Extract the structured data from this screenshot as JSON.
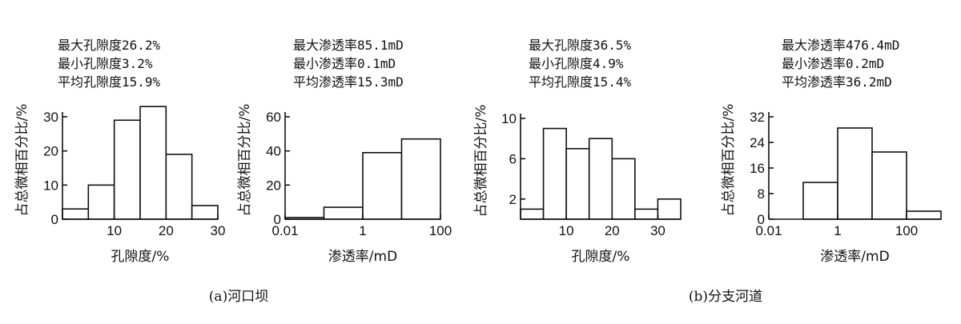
{
  "captions": [
    "(a)河口坝",
    "(b)分支河道"
  ],
  "chart_data": [
    {
      "type": "bar",
      "histogram": true,
      "stats": [
        "最大孔隙度26.2%",
        "最小孔隙度3.2%",
        "平均孔隙度15.9%"
      ],
      "xlabel": "孔隙度/%",
      "ylabel": "占总微相百分比/%",
      "xscale": "linear",
      "xlim": [
        0,
        30
      ],
      "xticks": [
        10,
        20,
        30
      ],
      "ylim": [
        0,
        30
      ],
      "yticks": [
        0,
        10,
        20,
        30
      ],
      "bins": [
        [
          0,
          5
        ],
        [
          5,
          10
        ],
        [
          10,
          15
        ],
        [
          15,
          20
        ],
        [
          20,
          25
        ],
        [
          25,
          30
        ]
      ],
      "values": [
        3,
        10,
        29,
        33,
        19,
        4
      ]
    },
    {
      "type": "bar",
      "histogram": true,
      "stats": [
        "最大渗透率85.1mD",
        "最小渗透率0.1mD",
        "平均渗透率15.3mD"
      ],
      "xlabel": "渗透率/mD",
      "ylabel": "占总微相百分比/%",
      "xscale": "log",
      "xlim": [
        0.01,
        100
      ],
      "xticks": [
        0.01,
        1,
        100
      ],
      "xticklabels": [
        "0.01",
        "1",
        "100"
      ],
      "ylim": [
        0,
        60
      ],
      "yticks": [
        0,
        20,
        40,
        60
      ],
      "bins": [
        [
          0.01,
          0.1
        ],
        [
          0.1,
          1
        ],
        [
          1,
          10
        ],
        [
          10,
          100
        ]
      ],
      "values": [
        1,
        7,
        39,
        47
      ]
    },
    {
      "type": "bar",
      "histogram": true,
      "stats": [
        "最大孔隙度36.5%",
        "最小孔隙度4.9%",
        "平均孔隙度15.4%"
      ],
      "xlabel": "孔隙度/%",
      "ylabel": "占总微相百分比/%",
      "xscale": "linear",
      "xlim": [
        0,
        35
      ],
      "xticks": [
        10,
        20,
        30
      ],
      "ylim": [
        0,
        10
      ],
      "yticks": [
        2,
        6,
        10
      ],
      "bins": [
        [
          0,
          5
        ],
        [
          5,
          10
        ],
        [
          10,
          15
        ],
        [
          15,
          20
        ],
        [
          20,
          25
        ],
        [
          25,
          30
        ],
        [
          30,
          35
        ]
      ],
      "values": [
        1,
        9,
        7,
        8,
        6,
        1,
        2
      ]
    },
    {
      "type": "bar",
      "histogram": true,
      "stats": [
        "最大渗透率476.4mD",
        "最小渗透率0.2mD",
        "平均渗透率36.2mD"
      ],
      "xlabel": "渗透率/mD",
      "ylabel": "占总微相百分比/%",
      "xscale": "log",
      "xlim": [
        0.01,
        1000
      ],
      "xticks": [
        0.01,
        1,
        100
      ],
      "xticklabels": [
        "0.01",
        "1",
        "100"
      ],
      "ylim": [
        0,
        32
      ],
      "yticks": [
        0,
        8,
        16,
        24,
        32
      ],
      "bins": [
        [
          0.01,
          0.1
        ],
        [
          0.1,
          1
        ],
        [
          1,
          10
        ],
        [
          10,
          100
        ],
        [
          100,
          1000
        ]
      ],
      "values": [
        0,
        11.5,
        28.5,
        21,
        2.5
      ]
    }
  ]
}
